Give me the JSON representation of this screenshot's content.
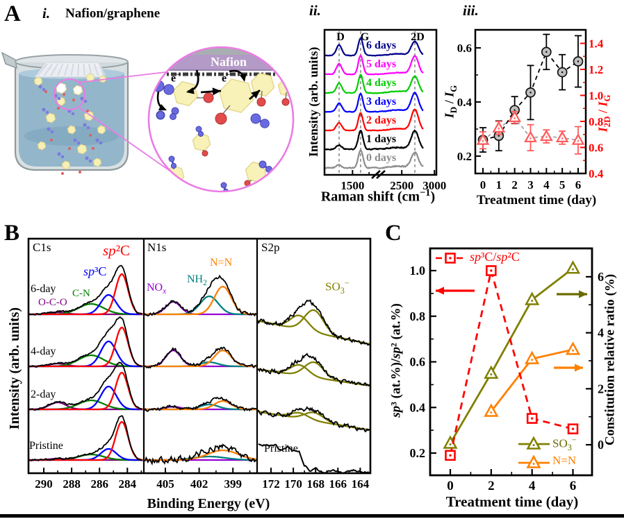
{
  "colors": {
    "pink_circle": "#ea7ce4",
    "nafion_band": "#b49ac6",
    "liquid": "#8fb3c9",
    "salmon": "#ff5b5b",
    "circle_marker_fill": "#bfbfbf",
    "red": "#ff0000",
    "olive": "#808000",
    "orange": "#ff8000",
    "teal": "#008080",
    "violet": "#9400d3",
    "dark_green": "#008000",
    "dark_purple": "#800080",
    "blue": "#0000ff",
    "navy": "#00008b",
    "magenta": "#ff00ff",
    "green": "#00cc00",
    "gray": "#8c8c8c"
  },
  "panelA": {
    "label": "A",
    "i": {
      "label": "i.",
      "title": "Nafion/graphene",
      "nafion": "Nafion",
      "electron_html": "e<sup>−</sup>"
    },
    "ii": {
      "label": "ii.",
      "ylabel": "Intensity (arb. units)",
      "xlabel_html": "Raman shift (cm<sup>−1</sup>)"
    },
    "iii": {
      "label": "iii.",
      "xlabel": "Treatment time (day)",
      "left_ylabel_html": "<i>I</i><sub>D</sub> / <i>I</i><sub>G</sub>",
      "right_ylabel_html": "<i>I</i><sub>2D</sub> / <i>I</i><sub>G</sub>"
    }
  },
  "panelB": {
    "label": "B",
    "ylabel": "Intensity (arb. units)",
    "xlabel": "Binding Energy (eV)",
    "col_titles": [
      "C1s",
      "N1s",
      "S2p"
    ],
    "row_labels": [
      "6-day",
      "4-day",
      "2-day",
      "Pristine"
    ],
    "peak_labels": {
      "sp2_html": "<i>sp</i>²C",
      "sp3_html": "<i>sp</i>³C",
      "cn": "C-N",
      "oco": "O-C-O",
      "nox_html": "NO<sub><i>x</i></sub>",
      "nh2_html": "NH<sub>2</sub>",
      "nn": "N=N",
      "so3_html": "SO<sub>3</sub><sup>−</sup>",
      "pristine_s2p": "Pristine"
    }
  },
  "panelC": {
    "label": "C",
    "xlabel": "Treatment time (day)",
    "left_ylabel_html": "<i>sp</i>³ (at.%)/<i>sp</i>² (at.%)",
    "right_ylabel": "Constitution relative ratio (%)",
    "legend_main_html": "<i>sp</i>³C/<i>sp</i>²C",
    "legend_so3_html": "SO<sub>3</sub><sup>−</sup>",
    "legend_nn": "N=N"
  },
  "chart_data": [
    {
      "id": "raman",
      "type": "line",
      "title": "Raman spectra vs treatment time",
      "xlabel": "Raman shift (cm-1)",
      "ylabel": "Intensity (arb. units)",
      "x_ticks": [
        1500,
        2500,
        3000
      ],
      "x_minor_ticks": [
        2000
      ],
      "axis_break": [
        1850,
        2150
      ],
      "peak_lines": [
        {
          "label": "D",
          "x": 1350
        },
        {
          "label": "G",
          "x": 1590
        },
        {
          "label": "2D",
          "x": 2700
        }
      ],
      "series": [
        {
          "name": "6 days",
          "color": "#00008b",
          "peaks": [
            [
              1350,
              30,
              15
            ],
            [
              1590,
              26,
              25
            ],
            [
              2450,
              130,
              2.5
            ],
            [
              2700,
              55,
              20
            ]
          ]
        },
        {
          "name": "5 days",
          "color": "#ff00ff",
          "peaks": [
            [
              1350,
              30,
              15
            ],
            [
              1590,
              26,
              27
            ],
            [
              2450,
              130,
              2.5
            ],
            [
              2700,
              55,
              26
            ]
          ]
        },
        {
          "name": "4 days",
          "color": "#00cc00",
          "peaks": [
            [
              1350,
              30,
              14
            ],
            [
              1590,
              26,
              26
            ],
            [
              2450,
              130,
              2.5
            ],
            [
              2700,
              55,
              24
            ]
          ]
        },
        {
          "name": "3 days",
          "color": "#0000ff",
          "peaks": [
            [
              1350,
              30,
              12
            ],
            [
              1590,
              26,
              26
            ],
            [
              2450,
              130,
              2.5
            ],
            [
              2700,
              55,
              27
            ]
          ]
        },
        {
          "name": "2 days",
          "color": "#ff0000",
          "peaks": [
            [
              1350,
              30,
              11
            ],
            [
              1590,
              26,
              25
            ],
            [
              2450,
              130,
              2.5
            ],
            [
              2700,
              55,
              30
            ]
          ]
        },
        {
          "name": "1 days",
          "color": "#000000",
          "peaks": [
            [
              1350,
              30,
              6
            ],
            [
              1590,
              26,
              27
            ],
            [
              2450,
              130,
              2.5
            ],
            [
              2700,
              55,
              26
            ]
          ]
        },
        {
          "name": "0 days",
          "color": "#8c8c8c",
          "peaks": [
            [
              1350,
              30,
              4
            ],
            [
              1590,
              26,
              26
            ],
            [
              2450,
              130,
              2.5
            ],
            [
              2700,
              55,
              22
            ]
          ]
        }
      ]
    },
    {
      "id": "raman_ratio",
      "type": "scatter",
      "title": "ID/IG and I2D/IG vs treatment time",
      "xlabel": "Treatment time (day)",
      "x": [
        0,
        1,
        2,
        3,
        4,
        5,
        6
      ],
      "x_ticks": [
        0,
        1,
        2,
        3,
        4,
        5,
        6
      ],
      "left_ylim": [
        0.147,
        0.683
      ],
      "left_ticks": [
        0.2,
        0.4,
        0.6
      ],
      "left_minor_ticks": [
        0.3,
        0.5
      ],
      "right_ylim": [
        0.39,
        1.5
      ],
      "right_ticks": [
        0.4,
        0.6,
        0.8,
        1.0,
        1.2,
        1.4
      ],
      "right_minor_ticks": [
        0.5,
        0.7,
        0.9,
        1.1,
        1.3
      ],
      "series": [
        {
          "name": "ID/IG",
          "axis": "left",
          "marker": "circle",
          "values": [
            0.26,
            0.275,
            0.37,
            0.435,
            0.585,
            0.51,
            0.55
          ],
          "errors": [
            0.045,
            0.055,
            0.05,
            0.1,
            0.065,
            0.065,
            0.095
          ]
        },
        {
          "name": "I2D/IG",
          "axis": "right",
          "marker": "triangle",
          "values": [
            0.655,
            0.75,
            0.83,
            0.675,
            0.685,
            0.675,
            0.655
          ],
          "errors": [
            0.065,
            0.05,
            0.045,
            0.1,
            0.05,
            0.05,
            0.105
          ]
        }
      ]
    },
    {
      "id": "xps",
      "type": "line",
      "title": "XPS C1s / N1s / S2p spectra",
      "xlabel": "Binding Energy (eV)",
      "ylabel": "Intensity (arb. units)",
      "rows": [
        "6-day",
        "4-day",
        "2-day",
        "Pristine"
      ],
      "columns": [
        {
          "name": "C1s",
          "ticks": [
            290,
            288,
            286,
            284
          ],
          "minor_ticks": [
            291,
            289,
            287,
            285,
            283
          ],
          "noise": 1.2,
          "components": [
            {
              "label": "O-C-O",
              "color": "#800080",
              "center": 289.0,
              "sigma": 0.6
            },
            {
              "label": "C-N",
              "color": "#008000",
              "center": 286.6,
              "sigma": 0.9
            },
            {
              "label": "sp3C",
              "color": "#0000ff",
              "center": 285.35,
              "sigma": 0.55
            },
            {
              "label": "sp2C",
              "color": "#ff0000",
              "center": 284.4,
              "sigma": 0.45
            }
          ],
          "row_heights": {
            "6-day": [
              3,
              15,
              28,
              58
            ],
            "4-day": [
              4,
              16,
              36,
              56
            ],
            "2-day": [
              10,
              13,
              33,
              53
            ],
            "Pristine": [
              2,
              8,
              16,
              55
            ]
          }
        },
        {
          "name": "N1s",
          "ticks": [
            405,
            402,
            399
          ],
          "minor_ticks": [
            403.5,
            400.5,
            397.5
          ],
          "noise": 2.2,
          "pristine_noise": 4.5,
          "sigma_scale_pristine": 1.8,
          "components": [
            {
              "label": "NOx",
              "color": "#9400d3",
              "center": 404.3,
              "sigma": 0.65
            },
            {
              "label": "NH2",
              "color": "#008080",
              "center": 401.1,
              "sigma": 0.8
            },
            {
              "label": "N=N",
              "color": "#ff8000",
              "center": 399.9,
              "sigma": 0.75
            }
          ],
          "row_heights": {
            "6-day": [
              18,
              26,
              40
            ],
            "4-day": [
              23,
              6,
              23
            ],
            "2-day": [
              4,
              7,
              12
            ],
            "Pristine": [
              0,
              5,
              14
            ]
          }
        },
        {
          "name": "S2p",
          "ticks": [
            172,
            170,
            168,
            166,
            164
          ],
          "minor_ticks": [
            171,
            169,
            167,
            165
          ],
          "noise": 3.0,
          "components": [
            {
              "label": "SO3-a",
              "color": "#808000",
              "center": 169.45,
              "sigma": 0.8
            },
            {
              "label": "SO3-b",
              "color": "#808000",
              "center": 168.15,
              "sigma": 0.85
            }
          ],
          "row_heights": {
            "6-day": [
              20,
              32
            ],
            "4-day": [
              15,
              22
            ],
            "2-day": [
              8,
              12
            ],
            "Pristine": null
          },
          "slopes": {
            "6-day": [
              9,
              43
            ],
            "4-day": [
              4,
              28
            ],
            "2-day": [
              3,
              30
            ]
          },
          "pristine_profile": [
            [
              173.2,
              43
            ],
            [
              172.3,
              41
            ],
            [
              171.6,
              41
            ],
            [
              171.1,
              34
            ],
            [
              170.5,
              40
            ],
            [
              170.0,
              33
            ],
            [
              169.5,
              34
            ],
            [
              169.0,
              13
            ],
            [
              168.5,
              4
            ],
            [
              168.0,
              8
            ],
            [
              167.3,
              2
            ],
            [
              166.4,
              5
            ],
            [
              165.5,
              1
            ],
            [
              164.6,
              6
            ],
            [
              163.7,
              2
            ],
            [
              163.1,
              3
            ]
          ]
        }
      ]
    },
    {
      "id": "sp3_constitution",
      "type": "line",
      "title": "sp3/sp2 ratio and constitution relative ratio vs treatment time",
      "xlabel": "Treatment time (day)",
      "x": [
        0,
        2,
        4,
        6
      ],
      "x_ticks": [
        0,
        2,
        4,
        6
      ],
      "x_minor_ticks": [
        1,
        3,
        5
      ],
      "left_ylim": [
        0.103,
        1.097
      ],
      "left_ticks": [
        0.2,
        0.4,
        0.6,
        0.8,
        1.0
      ],
      "left_minor_ticks": [
        0.3,
        0.5,
        0.7,
        0.9
      ],
      "right_ylim": [
        -1.09,
        7.01
      ],
      "right_ticks": [
        0,
        2,
        4,
        6
      ],
      "right_minor_ticks": [
        1,
        3,
        5
      ],
      "series": [
        {
          "name": "SO3-",
          "axis": "right",
          "color": "#808000",
          "marker": "triangle",
          "line": "solid",
          "values": [
            0.05,
            2.55,
            5.18,
            6.3
          ]
        },
        {
          "name": "N=N",
          "axis": "right",
          "color": "#ff8000",
          "marker": "triangle",
          "line": "solid",
          "values": [
            null,
            1.19,
            3.07,
            3.4
          ]
        },
        {
          "name": "sp3C/sp2C",
          "axis": "left",
          "color": "#ff0000",
          "marker": "square",
          "line": "dashed",
          "values": [
            0.19,
            1.0,
            0.352,
            0.306
          ]
        }
      ]
    }
  ]
}
